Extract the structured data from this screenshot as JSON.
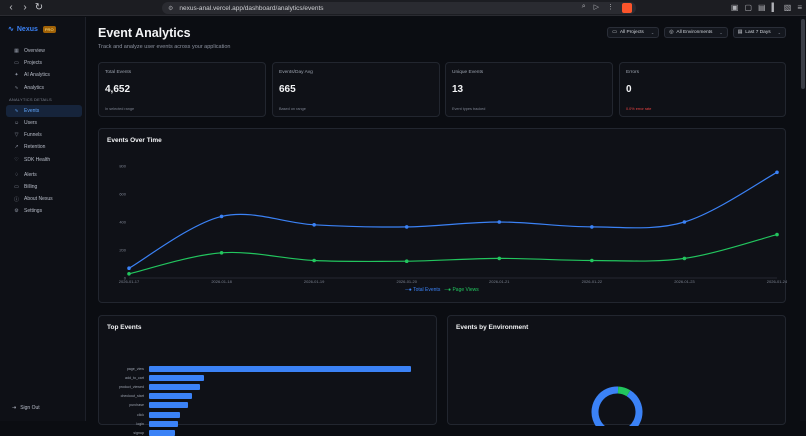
{
  "browser": {
    "url": "nexus-anal.vercel.app/dashboard/analytics/events"
  },
  "sidebar": {
    "brand": "Nexus",
    "badge": "PRO",
    "items": [
      {
        "label": "Overview",
        "icon": "grid-icon"
      },
      {
        "label": "Projects",
        "icon": "folder-icon"
      },
      {
        "label": "AI Analytics",
        "icon": "sparkle-icon"
      },
      {
        "label": "Analytics",
        "icon": "activity-icon"
      }
    ],
    "section_label": "ANALYTICS DETAILS",
    "detail_items": [
      {
        "label": "Events",
        "icon": "pulse-icon",
        "active": true
      },
      {
        "label": "Users",
        "icon": "users-icon"
      },
      {
        "label": "Funnels",
        "icon": "funnel-icon"
      },
      {
        "label": "Retention",
        "icon": "trend-icon"
      },
      {
        "label": "SDK Health",
        "icon": "heart-icon"
      }
    ],
    "bottom_items": [
      {
        "label": "Alerts",
        "icon": "bell-icon"
      },
      {
        "label": "Billing",
        "icon": "card-icon"
      },
      {
        "label": "About Nexus",
        "icon": "info-icon"
      },
      {
        "label": "Settings",
        "icon": "gear-icon"
      }
    ],
    "signout": "Sign Out"
  },
  "header": {
    "title": "Event Analytics",
    "subtitle": "Track and analyze user events across your application"
  },
  "filters": {
    "projects": "All Projects",
    "environments": "All Environments",
    "range": "Last 7 Days"
  },
  "stats": [
    {
      "label": "Total Events",
      "value": "4,652",
      "note": "In selected range"
    },
    {
      "label": "Events/Day Avg",
      "value": "665",
      "note": "Based on range"
    },
    {
      "label": "Unique Events",
      "value": "13",
      "note": "Event types tracked"
    },
    {
      "label": "Errors",
      "value": "0",
      "note": "0.0% error rate"
    }
  ],
  "colors": {
    "total": "#3b82f6",
    "views": "#22c55e",
    "error": "#ef4444"
  },
  "chart_data": [
    {
      "type": "line",
      "title": "Events Over Time",
      "x": [
        "2026-01-17",
        "2026-01-18",
        "2026-01-19",
        "2026-01-20",
        "2026-01-21",
        "2026-01-22",
        "2026-01-23",
        "2026-01-24"
      ],
      "x_tick_labels": [
        "2026-01-17",
        "2026-01-18",
        "2026-01-19",
        "2026-01-20",
        "2026-01-21",
        "2026-01-22",
        "2026-01-23",
        "2026-01-24"
      ],
      "y_tick_labels": [
        "0",
        "200",
        "400",
        "600",
        "800"
      ],
      "ylim": [
        0,
        800
      ],
      "series": [
        {
          "name": "Total Events",
          "values": [
            70,
            440,
            380,
            365,
            400,
            365,
            400,
            755
          ]
        },
        {
          "name": "Page Views",
          "values": [
            30,
            180,
            125,
            120,
            140,
            125,
            140,
            310
          ]
        }
      ],
      "legend": "bottom",
      "grid": false
    },
    {
      "type": "bar",
      "title": "Top Events",
      "orientation": "horizontal",
      "categories": [
        "page_view",
        "add_to_cart",
        "product_viewed",
        "checkout_start",
        "purchase",
        "click",
        "login",
        "signup"
      ],
      "values": [
        1000,
        210,
        195,
        165,
        150,
        120,
        110,
        100
      ]
    },
    {
      "type": "pie",
      "title": "Events by Environment",
      "series": [
        {
          "values": [
            92,
            8
          ]
        }
      ]
    }
  ]
}
